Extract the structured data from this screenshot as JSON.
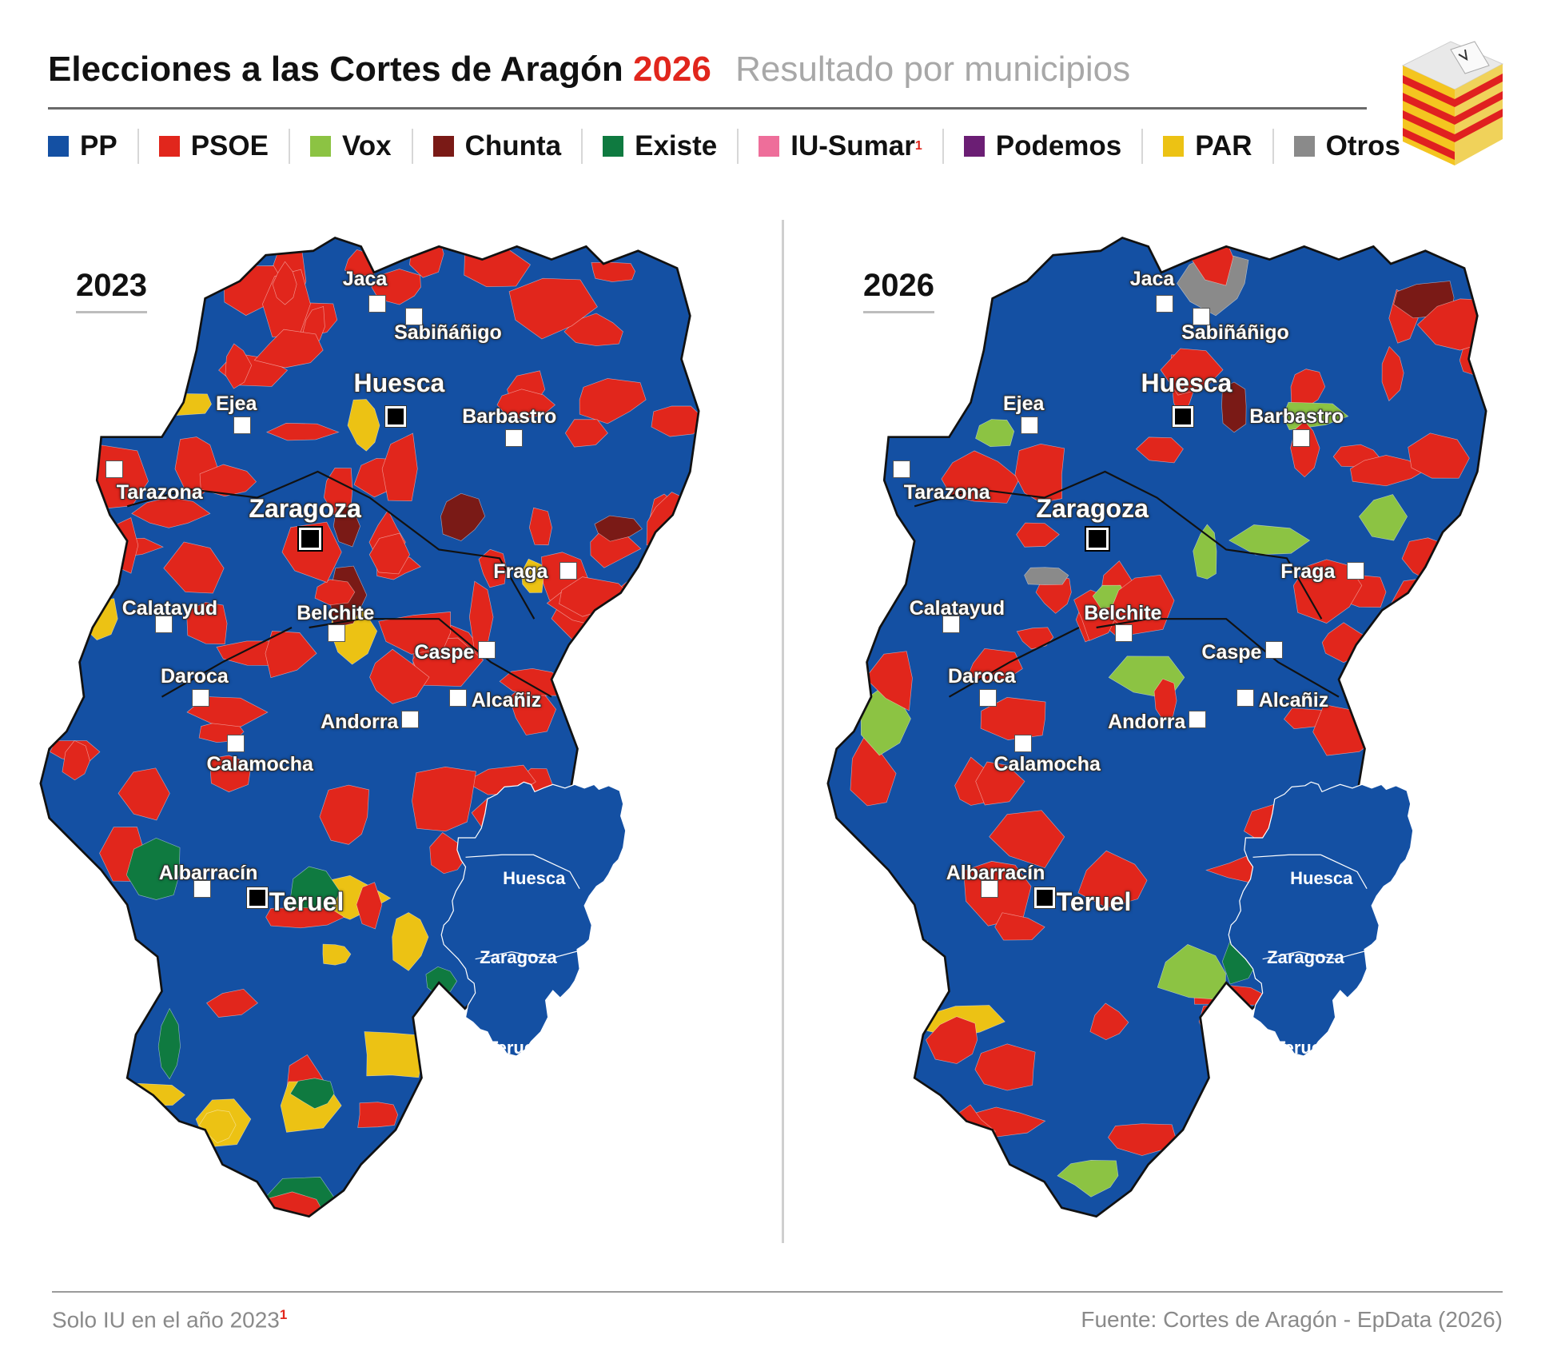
{
  "header": {
    "title": "Elecciones a las Cortes de Aragón",
    "title_year": "2026",
    "subtitle": "Resultado por municipios"
  },
  "legend": [
    {
      "label": "PP",
      "color": "#1450a3",
      "sup": ""
    },
    {
      "label": "PSOE",
      "color": "#e1261c",
      "sup": ""
    },
    {
      "label": "Vox",
      "color": "#8cc343",
      "sup": ""
    },
    {
      "label": "Chunta",
      "color": "#7a1a16",
      "sup": ""
    },
    {
      "label": "Existe",
      "color": "#0f7a40",
      "sup": ""
    },
    {
      "label": "IU-Sumar",
      "color": "#ee6e9a",
      "sup": "1"
    },
    {
      "label": "Podemos",
      "color": "#6b1e74",
      "sup": ""
    },
    {
      "label": "PAR",
      "color": "#ecc214",
      "sup": ""
    },
    {
      "label": "Otros",
      "color": "#8a8a8a",
      "sup": ""
    }
  ],
  "maps": [
    {
      "year": "2023",
      "cities": {
        "jaca": "Jaca",
        "sabinanigo": "Sabiñáñigo",
        "huesca": "Huesca",
        "ejea": "Ejea",
        "barbastro": "Barbastro",
        "tarazona": "Tarazona",
        "zaragoza": "Zaragoza",
        "fraga": "Fraga",
        "calatayud": "Calatayud",
        "belchite": "Belchite",
        "caspe": "Caspe",
        "daroca": "Daroca",
        "alcaniz": "Alcañiz",
        "andorra": "Andorra",
        "calamocha": "Calamocha",
        "albarracin": "Albarracín",
        "teruel": "Teruel"
      },
      "inset": {
        "huesca": "Huesca",
        "zaragoza": "Zaragoza",
        "teruel": "Teruel",
        "winner": "PP"
      }
    },
    {
      "year": "2026",
      "cities": {
        "jaca": "Jaca",
        "sabinanigo": "Sabiñáñigo",
        "huesca": "Huesca",
        "ejea": "Ejea",
        "barbastro": "Barbastro",
        "tarazona": "Tarazona",
        "zaragoza": "Zaragoza",
        "fraga": "Fraga",
        "calatayud": "Calatayud",
        "belchite": "Belchite",
        "caspe": "Caspe",
        "daroca": "Daroca",
        "alcaniz": "Alcañiz",
        "andorra": "Andorra",
        "calamocha": "Calamocha",
        "albarracin": "Albarracín",
        "teruel": "Teruel"
      },
      "inset": {
        "huesca": "Huesca",
        "zaragoza": "Zaragoza",
        "teruel": "Teruel",
        "winner": "PP"
      }
    }
  ],
  "footer": {
    "note": "Solo IU en el año 2023",
    "note_sup": "1",
    "source": "Fuente: Cortes de Aragón - EpData (2026)"
  }
}
